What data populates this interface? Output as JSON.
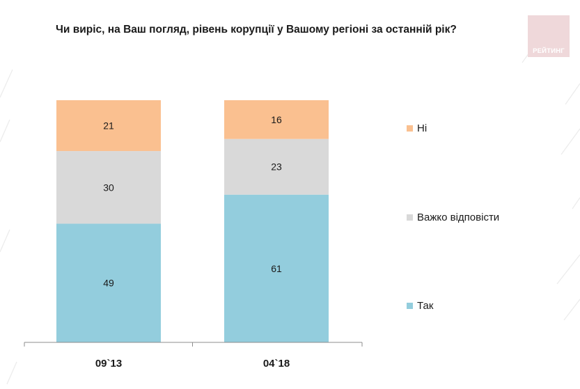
{
  "title": "Чи виріс, на Ваш погляд, рівень корупції у Вашому регіоні за останній рік?",
  "logo": {
    "text": "РЕЙТИНГ",
    "color": "#efd8da"
  },
  "chart_data": {
    "type": "bar",
    "stacked": true,
    "categories": [
      "09`13",
      "04`18"
    ],
    "series": [
      {
        "name": "Так",
        "values": [
          49,
          61
        ],
        "color": "#93cddd"
      },
      {
        "name": "Важко відповісти",
        "values": [
          30,
          23
        ],
        "color": "#d9d9d9"
      },
      {
        "name": "Ні",
        "values": [
          21,
          16
        ],
        "color": "#fac090"
      }
    ],
    "ylim": [
      0,
      100
    ],
    "grid": false,
    "legend_position": "right",
    "legend_order": [
      "Ні",
      "Важко відповісти",
      "Так"
    ]
  }
}
